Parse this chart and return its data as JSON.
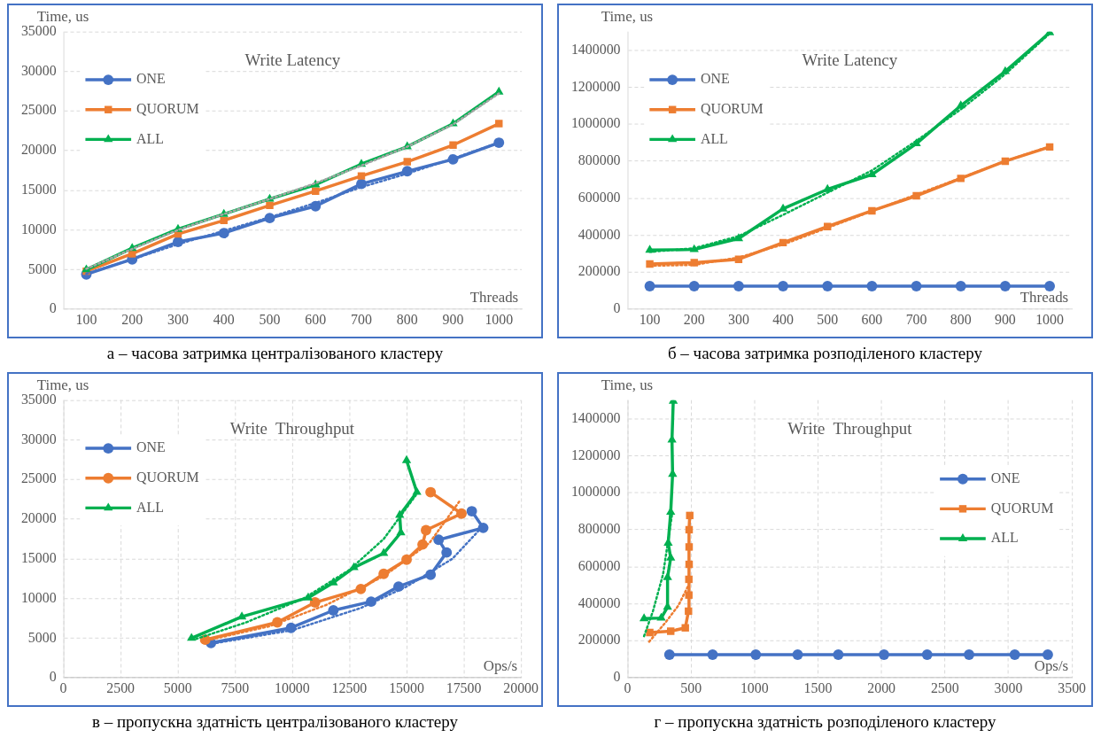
{
  "chart_data": [
    {
      "type": "line",
      "title": "Write Latency",
      "xlabel": "Threads",
      "ylabel": "Time, us",
      "annotations": [
        "а – часова затримка централізованого кластеру"
      ],
      "categories": [
        "100",
        "200",
        "300",
        "400",
        "500",
        "600",
        "700",
        "800",
        "900",
        "1000"
      ],
      "ylim": [
        0,
        35000
      ],
      "yticks": [
        0,
        5000,
        10000,
        15000,
        20000,
        25000,
        30000,
        35000
      ],
      "grid": "y",
      "legend": "top left",
      "series": [
        {
          "name": "ONE",
          "color": "#4472c4",
          "marker": "circle",
          "values": [
            4400,
            6300,
            8500,
            9600,
            11500,
            13000,
            15800,
            17400,
            18900,
            21000
          ]
        },
        {
          "name": "QUORUM",
          "color": "#ed7d31",
          "marker": "square",
          "values": [
            4800,
            7000,
            9500,
            11200,
            13100,
            14900,
            16800,
            18600,
            20700,
            23400
          ]
        },
        {
          "name": "ALL",
          "color": "#00b050",
          "marker": "triangle",
          "values": [
            5000,
            7700,
            10100,
            12000,
            13900,
            15700,
            18300,
            20500,
            23400,
            27400
          ]
        },
        {
          "color": "#4472c4",
          "marker": "none",
          "line_style": "dotted",
          "values": [
            4500,
            6300,
            8200,
            9900,
            11600,
            13400,
            15400,
            17100,
            19000,
            21000
          ]
        },
        {
          "color": "#a5a5a5",
          "marker": "none",
          "line_style": "dotted",
          "values": [
            5100,
            7600,
            10000,
            12000,
            13900,
            15900,
            18100,
            20500,
            23300,
            27200
          ]
        }
      ]
    },
    {
      "type": "line",
      "title": "Write Latency",
      "xlabel": "Threads",
      "ylabel": "Time, us",
      "annotations": [
        "б – часова затримка розподіленого кластеру"
      ],
      "categories": [
        "100",
        "200",
        "300",
        "400",
        "500",
        "600",
        "700",
        "800",
        "900",
        "1000"
      ],
      "ylim": [
        0,
        1500000
      ],
      "yticks": [
        0,
        200000,
        400000,
        600000,
        800000,
        1000000,
        1200000,
        1400000
      ],
      "grid": "y",
      "legend": "top left",
      "series": [
        {
          "name": "ONE",
          "color": "#4472c4",
          "marker": "circle",
          "values": [
            125000,
            125000,
            125000,
            125000,
            125000,
            125000,
            125000,
            125000,
            125000,
            125000
          ]
        },
        {
          "name": "QUORUM",
          "color": "#ed7d31",
          "marker": "square",
          "values": [
            245000,
            252000,
            270000,
            360000,
            447000,
            532000,
            613000,
            707000,
            800000,
            877000
          ]
        },
        {
          "name": "ALL",
          "color": "#00b050",
          "marker": "triangle",
          "values": [
            320000,
            323000,
            382000,
            543000,
            648000,
            728000,
            895000,
            1100000,
            1285000,
            1495000
          ]
        },
        {
          "color": "#ed7d31",
          "marker": "none",
          "line_style": "dotted",
          "values": [
            235000,
            240000,
            280000,
            350000,
            440000,
            530000,
            620000,
            710000,
            800000,
            880000
          ]
        },
        {
          "color": "#00b050",
          "marker": "none",
          "line_style": "dotted",
          "values": [
            310000,
            330000,
            395000,
            510000,
            630000,
            750000,
            910000,
            1080000,
            1270000,
            1490000
          ]
        }
      ]
    },
    {
      "type": "line",
      "title": "Write  Throughput",
      "xlabel": "Ops/s",
      "ylabel": "Time, us",
      "annotations": [
        "в – пропускна здатність централізованого кластеру"
      ],
      "xlim": [
        0,
        20000
      ],
      "xticks": [
        0,
        2500,
        5000,
        7500,
        10000,
        12500,
        15000,
        17500,
        20000
      ],
      "ylim": [
        0,
        35000
      ],
      "yticks": [
        0,
        5000,
        10000,
        15000,
        20000,
        25000,
        30000,
        35000
      ],
      "grid": true,
      "legend": "top left",
      "series": [
        {
          "name": "ONE",
          "color": "#4472c4",
          "marker": "circle",
          "x": [
            6450,
            9950,
            11800,
            13450,
            14650,
            16050,
            16750,
            16400,
            18350,
            17850
          ],
          "values": [
            4400,
            6300,
            8500,
            9600,
            11500,
            13000,
            15800,
            17400,
            18900,
            21000
          ]
        },
        {
          "name": "QUORUM",
          "color": "#ed7d31",
          "marker": "circle",
          "x": [
            6200,
            9350,
            11000,
            13000,
            14000,
            15000,
            15700,
            15850,
            17400,
            16050
          ],
          "values": [
            4800,
            7000,
            9500,
            11200,
            13100,
            14900,
            16800,
            18600,
            20700,
            23400
          ]
        },
        {
          "name": "ALL",
          "color": "#00b050",
          "marker": "triangle",
          "x": [
            5600,
            7800,
            10700,
            11800,
            12700,
            14000,
            14750,
            14700,
            15450,
            15000
          ],
          "values": [
            5000,
            7700,
            10100,
            12000,
            13900,
            15700,
            18300,
            20500,
            23400,
            27400
          ]
        },
        {
          "color": "#4472c4",
          "marker": "none",
          "line_style": "dotted",
          "x": [
            6500,
            10000,
            13000,
            15000,
            17000,
            18300
          ],
          "values": [
            4300,
            6000,
            8800,
            11500,
            15000,
            19000
          ]
        },
        {
          "color": "#ed7d31",
          "marker": "none",
          "line_style": "dotted",
          "x": [
            6100,
            9000,
            11500,
            14000,
            16000,
            17300
          ],
          "values": [
            4600,
            6500,
            9200,
            12800,
            17000,
            22200
          ]
        },
        {
          "color": "#00b050",
          "marker": "none",
          "line_style": "dotted",
          "x": [
            5800,
            8000,
            10500,
            12500,
            14000,
            15400
          ],
          "values": [
            4900,
            7000,
            10000,
            13600,
            17500,
            23000
          ]
        }
      ]
    },
    {
      "type": "line",
      "title": "Write  Throughput",
      "xlabel": "Ops/s",
      "ylabel": "Time, us",
      "annotations": [
        "г – пропускна здатність розподіленого кластеру"
      ],
      "xlim": [
        0,
        3500
      ],
      "xticks": [
        0,
        500,
        1000,
        1500,
        2000,
        2500,
        3000,
        3500
      ],
      "ylim": [
        0,
        1500000
      ],
      "yticks": [
        0,
        200000,
        400000,
        600000,
        800000,
        1000000,
        1200000,
        1400000
      ],
      "grid": true,
      "legend": "right",
      "series": [
        {
          "name": "ONE",
          "color": "#4472c4",
          "marker": "circle",
          "x": [
            330,
            670,
            1010,
            1340,
            1660,
            2020,
            2360,
            2690,
            3050,
            3310
          ],
          "values": [
            125000,
            125000,
            125000,
            125000,
            125000,
            125000,
            125000,
            125000,
            125000,
            125000
          ]
        },
        {
          "name": "QUORUM",
          "color": "#ed7d31",
          "marker": "square",
          "x": [
            175,
            340,
            455,
            480,
            483,
            483,
            485,
            485,
            485,
            490
          ],
          "values": [
            245000,
            252000,
            270000,
            360000,
            447000,
            532000,
            613000,
            707000,
            800000,
            877000
          ]
        },
        {
          "name": "ALL",
          "color": "#00b050",
          "marker": "triangle",
          "x": [
            130,
            265,
            315,
            315,
            340,
            320,
            340,
            355,
            350,
            360
          ],
          "values": [
            320000,
            323000,
            382000,
            543000,
            648000,
            728000,
            895000,
            1100000,
            1285000,
            1495000
          ]
        },
        {
          "color": "#ed7d31",
          "marker": "none",
          "line_style": "dotted",
          "x": [
            170,
            300,
            400,
            480
          ],
          "values": [
            195000,
            300000,
            390000,
            500000
          ]
        },
        {
          "color": "#00b050",
          "marker": "none",
          "line_style": "dotted",
          "x": [
            130,
            200,
            280,
            350
          ],
          "values": [
            225000,
            360000,
            560000,
            880000
          ]
        }
      ]
    }
  ]
}
